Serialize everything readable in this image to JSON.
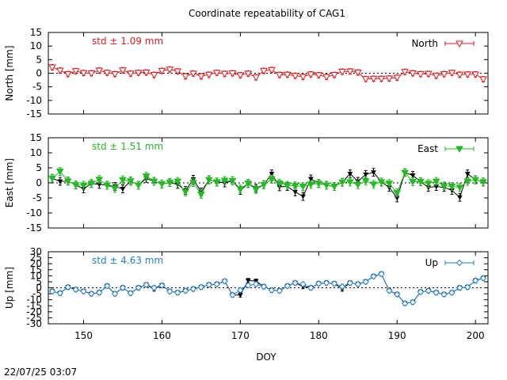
{
  "title": "Coordinate repeatability of CAG1",
  "xlabel": "DOY",
  "timestamp": "22/07/25 03:07",
  "chart_data": [
    {
      "type": "scatter",
      "panel": "north",
      "ylabel": "North [mm]",
      "ylim": [
        -15,
        15
      ],
      "yticks": [
        -15,
        -10,
        -5,
        0,
        5,
        10,
        15
      ],
      "xlim": [
        145.5,
        201.6
      ],
      "xticks": [
        150,
        160,
        170,
        180,
        190,
        200
      ],
      "stat_text": "std ± 1.09 mm",
      "legend": "top-right",
      "grid": false,
      "zero_line": true,
      "color": "#e41a1c",
      "reference_color": "#000000",
      "series": [
        {
          "name": "North",
          "x": [
            146,
            147,
            148,
            149,
            150,
            151,
            152,
            153,
            154,
            155,
            156,
            157,
            158,
            159,
            160,
            161,
            162,
            163,
            164,
            165,
            166,
            167,
            168,
            169,
            170,
            171,
            172,
            173,
            174,
            175,
            176,
            177,
            178,
            179,
            180,
            181,
            182,
            183,
            184,
            185,
            186,
            187,
            188,
            189,
            190,
            191,
            192,
            193,
            194,
            195,
            196,
            197,
            198,
            199,
            200,
            201
          ],
          "y": [
            2.2,
            1.0,
            -0.3,
            0.8,
            0.1,
            0.0,
            1.0,
            0.2,
            -0.3,
            1.1,
            -0.1,
            0.2,
            0.3,
            -0.6,
            0.9,
            1.4,
            0.7,
            -1.1,
            -0.1,
            -1.1,
            -0.5,
            0.2,
            -0.2,
            0.0,
            -0.7,
            -0.1,
            -1.5,
            0.9,
            1.2,
            -0.6,
            -0.5,
            -0.9,
            -1.3,
            -0.4,
            -0.7,
            -1.3,
            -0.6,
            0.6,
            0.7,
            0.3,
            -2.1,
            -2.0,
            -2.0,
            -1.9,
            -1.6,
            0.5,
            0.0,
            -0.3,
            -0.2,
            -0.9,
            -0.3,
            0.2,
            -0.5,
            -0.4,
            -0.4,
            -2.2
          ],
          "err": [
            1.0,
            1.0,
            1.0,
            1.0,
            1.0,
            1.0,
            1.0,
            1.0,
            1.0,
            1.0,
            1.0,
            1.0,
            1.0,
            1.0,
            1.0,
            1.0,
            1.0,
            1.0,
            1.0,
            1.0,
            1.0,
            1.0,
            1.0,
            1.0,
            1.0,
            1.0,
            1.0,
            1.0,
            1.0,
            1.0,
            1.0,
            1.0,
            1.0,
            1.0,
            1.0,
            1.0,
            1.0,
            1.0,
            1.0,
            1.0,
            1.0,
            1.0,
            1.0,
            1.0,
            1.0,
            1.0,
            1.0,
            1.0,
            1.0,
            1.0,
            1.0,
            1.0,
            1.0,
            1.0,
            1.0,
            1.0
          ]
        }
      ]
    },
    {
      "type": "scatter",
      "panel": "east",
      "ylabel": "East [mm]",
      "ylim": [
        -15,
        15
      ],
      "yticks": [
        -15,
        -10,
        -5,
        0,
        5,
        10,
        15
      ],
      "xlim": [
        145.5,
        201.6
      ],
      "xticks": [
        150,
        160,
        170,
        180,
        190,
        200
      ],
      "stat_text": "std ± 1.51 mm",
      "legend": "top-right",
      "grid": false,
      "zero_line": true,
      "color": "#22bb22",
      "reference_color": "#000000",
      "series": [
        {
          "name": "East",
          "x": [
            146,
            147,
            148,
            149,
            150,
            151,
            152,
            153,
            154,
            155,
            156,
            157,
            158,
            159,
            160,
            161,
            162,
            163,
            164,
            165,
            166,
            167,
            168,
            169,
            170,
            171,
            172,
            173,
            174,
            175,
            176,
            177,
            178,
            179,
            180,
            181,
            182,
            183,
            184,
            185,
            186,
            187,
            188,
            189,
            190,
            191,
            192,
            193,
            194,
            195,
            196,
            197,
            198,
            199,
            200,
            201
          ],
          "y": [
            1.5,
            3.8,
            0.6,
            -0.7,
            -0.8,
            -0.2,
            1.1,
            -0.8,
            -1.8,
            1.0,
            0.6,
            -0.8,
            2.2,
            0.5,
            -0.4,
            0.1,
            0.5,
            -3.0,
            0.1,
            -3.8,
            1.0,
            0.3,
            0.8,
            0.7,
            -2.0,
            -0.2,
            -2.2,
            -0.6,
            1.2,
            -0.1,
            -0.8,
            -1.0,
            -1.2,
            -0.5,
            -0.2,
            -0.8,
            -1.2,
            0.2,
            0.3,
            -0.6,
            0.6,
            -0.5,
            0.3,
            -0.2,
            -3.3,
            3.4,
            0.4,
            0.4,
            -0.2,
            0.5,
            -1.0,
            -1.2,
            -1.5,
            0.5,
            1.0,
            0.3
          ],
          "err": [
            1.3,
            1.3,
            1.3,
            1.3,
            1.3,
            1.3,
            1.3,
            1.3,
            1.3,
            1.3,
            1.3,
            1.3,
            1.3,
            1.3,
            1.3,
            1.3,
            1.3,
            1.3,
            1.3,
            1.3,
            1.3,
            1.3,
            1.3,
            1.3,
            1.3,
            1.3,
            1.3,
            1.3,
            1.3,
            1.3,
            1.3,
            1.3,
            1.3,
            1.3,
            1.3,
            1.3,
            1.3,
            1.3,
            1.3,
            1.3,
            1.3,
            1.3,
            1.3,
            1.3,
            1.3,
            1.3,
            1.3,
            1.3,
            1.3,
            1.3,
            1.3,
            1.3,
            1.3,
            1.3,
            1.3,
            1.3
          ]
        },
        {
          "x": [
            146,
            147,
            148,
            149,
            150,
            151,
            152,
            153,
            154,
            155,
            156,
            157,
            158,
            159,
            160,
            161,
            162,
            163,
            164,
            165,
            166,
            167,
            168,
            169,
            170,
            171,
            172,
            173,
            174,
            175,
            176,
            177,
            178,
            179,
            180,
            181,
            182,
            183,
            184,
            185,
            186,
            187,
            188,
            189,
            190,
            191,
            192,
            193,
            194,
            195,
            196,
            197,
            198,
            199,
            200,
            201
          ],
          "y": [
            1.5,
            0.5,
            0.6,
            -0.7,
            -2.0,
            -0.2,
            -0.5,
            -0.8,
            -1.2,
            -2.0,
            0.6,
            -0.8,
            1.5,
            0.5,
            -0.4,
            0.1,
            -0.5,
            -2.5,
            1.2,
            -3.0,
            1.0,
            0.3,
            0.0,
            0.7,
            -2.5,
            -0.2,
            -1.8,
            -0.6,
            3.0,
            -1.3,
            -1.2,
            -3.0,
            -4.5,
            1.3,
            -0.2,
            -0.8,
            -1.2,
            0.2,
            3.0,
            0.5,
            2.8,
            3.5,
            0.3,
            -1.5,
            -5.0,
            3.4,
            2.5,
            0.4,
            -1.5,
            -1.2,
            -1.5,
            -2.5,
            -4.8,
            3.0,
            1.0,
            0.3
          ],
          "err": [
            1.3,
            1.3,
            1.3,
            1.3,
            1.3,
            1.3,
            1.3,
            1.3,
            1.3,
            1.3,
            1.3,
            1.3,
            1.3,
            1.3,
            1.3,
            1.3,
            1.3,
            1.3,
            1.3,
            1.3,
            1.3,
            1.3,
            1.3,
            1.3,
            1.3,
            1.3,
            1.3,
            1.3,
            1.3,
            1.3,
            1.3,
            1.3,
            1.3,
            1.3,
            1.3,
            1.3,
            1.3,
            1.3,
            1.3,
            1.3,
            1.3,
            1.3,
            1.3,
            1.3,
            1.3,
            1.3,
            1.3,
            1.3,
            1.3,
            1.3,
            1.3,
            1.3,
            1.3,
            1.3,
            1.3,
            1.3
          ]
        }
      ]
    },
    {
      "type": "scatter",
      "panel": "up",
      "ylabel": "Up [mm]",
      "ylim": [
        -30,
        30
      ],
      "yticks": [
        -30,
        -25,
        -20,
        -15,
        -10,
        -5,
        0,
        5,
        10,
        15,
        20,
        25,
        30
      ],
      "xlim": [
        145.5,
        201.6
      ],
      "xticks": [
        150,
        160,
        170,
        180,
        190,
        200
      ],
      "stat_text": "std ± 4.63 mm",
      "legend": "top-right",
      "grid": false,
      "zero_line": true,
      "color": "#1f7fd0",
      "reference_color": "#000000",
      "series": [
        {
          "name": "Up",
          "x": [
            146,
            147,
            148,
            149,
            150,
            151,
            152,
            153,
            154,
            155,
            156,
            157,
            158,
            159,
            160,
            161,
            162,
            163,
            164,
            165,
            166,
            167,
            168,
            169,
            170,
            171,
            172,
            173,
            174,
            175,
            176,
            177,
            178,
            179,
            180,
            181,
            182,
            183,
            184,
            185,
            186,
            187,
            188,
            189,
            190,
            191,
            192,
            193,
            194,
            195,
            196,
            197,
            198,
            199,
            200,
            201
          ],
          "y": [
            -3.0,
            -4.5,
            0.5,
            -1.5,
            -3.0,
            -5.0,
            -4.0,
            1.5,
            -5.0,
            0.0,
            -4.5,
            0.0,
            2.5,
            0.0,
            2.0,
            -3.0,
            -4.0,
            -2.5,
            -1.0,
            0.5,
            2.5,
            3.0,
            5.5,
            -6.0,
            -2.0,
            2.0,
            3.0,
            1.0,
            -2.0,
            -2.5,
            1.5,
            4.0,
            3.0,
            0.0,
            3.5,
            4.0,
            3.5,
            1.0,
            4.0,
            3.0,
            5.0,
            9.5,
            11.5,
            -2.5,
            -5.5,
            -13.0,
            -12.0,
            -3.5,
            -2.5,
            -4.0,
            -5.5,
            -4.0,
            0.0,
            0.5,
            6.0,
            8.0
          ],
          "err": [
            1.8,
            1.8,
            1.8,
            1.8,
            1.8,
            1.8,
            1.8,
            1.8,
            1.8,
            1.8,
            1.8,
            1.8,
            1.8,
            1.8,
            1.8,
            1.8,
            1.8,
            1.8,
            1.8,
            1.8,
            1.8,
            1.8,
            1.8,
            1.8,
            1.8,
            1.8,
            1.8,
            1.8,
            1.8,
            1.8,
            1.8,
            1.8,
            1.8,
            1.8,
            1.8,
            1.8,
            1.8,
            1.8,
            1.8,
            1.8,
            1.8,
            1.8,
            1.8,
            1.8,
            1.8,
            1.8,
            1.8,
            1.8,
            1.8,
            1.8,
            1.8,
            1.8,
            1.8,
            1.8,
            1.8,
            1.8
          ]
        },
        {
          "x": [
            146,
            147,
            148,
            149,
            150,
            151,
            152,
            153,
            154,
            155,
            156,
            157,
            158,
            159,
            160,
            161,
            162,
            163,
            164,
            165,
            166,
            167,
            168,
            169,
            170,
            171,
            172,
            173,
            174,
            175,
            176,
            177,
            178,
            179,
            180,
            181,
            182,
            183,
            184,
            185,
            186,
            187,
            188,
            189,
            190,
            191,
            192,
            193,
            194,
            195,
            196,
            197,
            198,
            199,
            200,
            201
          ],
          "y": [
            -3.0,
            -4.5,
            0.5,
            -1.5,
            -3.0,
            -5.0,
            -4.0,
            1.5,
            -5.0,
            0.0,
            -4.5,
            0.0,
            2.5,
            -1.0,
            2.0,
            -3.0,
            -4.0,
            -2.5,
            -1.0,
            0.5,
            2.5,
            3.0,
            5.5,
            -6.0,
            -6.0,
            6.0,
            5.5,
            1.0,
            -2.0,
            -2.5,
            1.5,
            4.0,
            1.0,
            0.0,
            3.5,
            4.0,
            3.5,
            -1.0,
            4.0,
            3.0,
            5.0,
            9.5,
            11.5,
            -2.5,
            -5.5,
            -13.0,
            -12.0,
            -3.5,
            -2.5,
            -4.0,
            -5.5,
            -4.0,
            0.0,
            0.5,
            6.0,
            8.0
          ],
          "err": [
            1.8,
            1.8,
            1.8,
            1.8,
            1.8,
            1.8,
            1.8,
            1.8,
            1.8,
            1.8,
            1.8,
            1.8,
            1.8,
            1.8,
            1.8,
            1.8,
            1.8,
            1.8,
            1.8,
            1.8,
            1.8,
            1.8,
            1.8,
            1.8,
            1.8,
            1.8,
            1.8,
            1.8,
            1.8,
            1.8,
            1.8,
            1.8,
            1.8,
            1.8,
            1.8,
            1.8,
            1.8,
            1.8,
            1.8,
            1.8,
            1.8,
            1.8,
            1.8,
            1.8,
            1.8,
            1.8,
            1.8,
            1.8,
            1.8,
            1.8,
            1.8,
            1.8,
            1.8,
            1.8,
            1.8,
            1.8
          ]
        }
      ]
    }
  ]
}
